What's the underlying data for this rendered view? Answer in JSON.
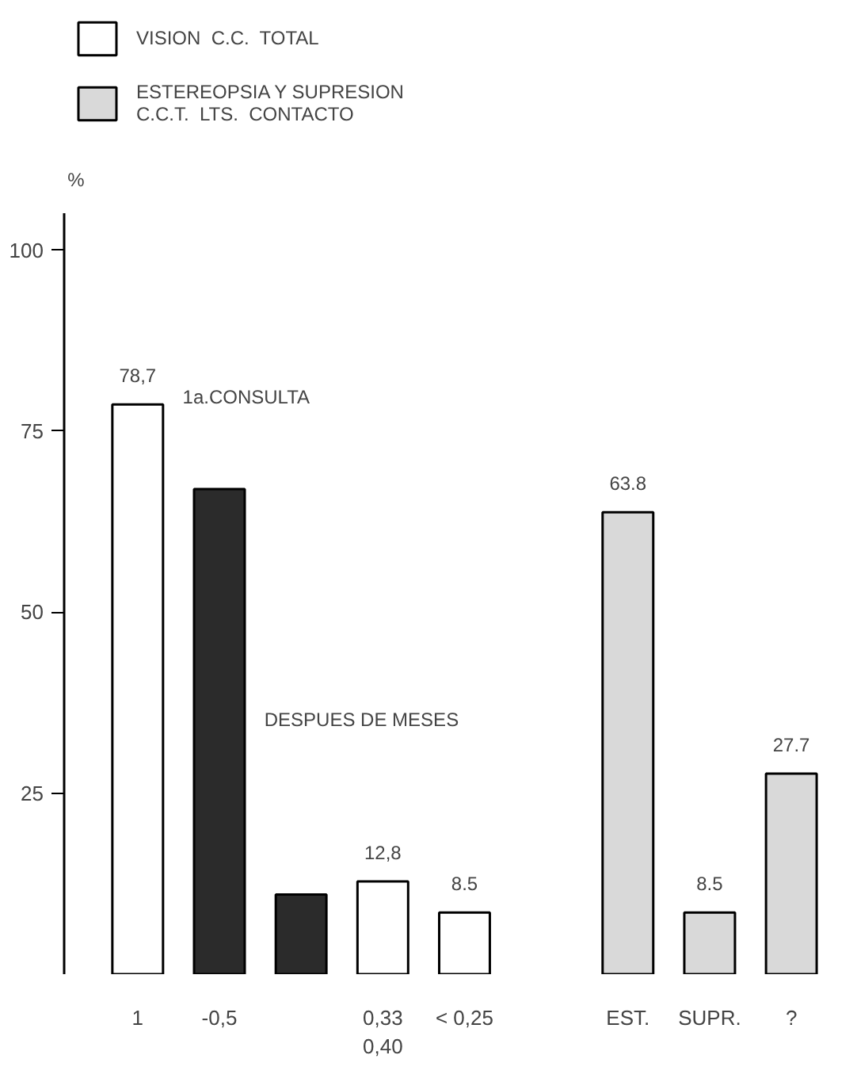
{
  "chart_data": {
    "type": "bar",
    "categories": [
      "1",
      "-0,5",
      null,
      "0,33\n0,40",
      "< 0,25",
      null,
      "EST.",
      "SUPR.",
      "?"
    ],
    "series": [
      {
        "name": "VISION  C.C.  TOTAL",
        "color": "#ffffff",
        "values": [
          78.7,
          null,
          null,
          12.8,
          8.5,
          null,
          null,
          null,
          null
        ],
        "value_labels": [
          "78,7",
          null,
          null,
          "12,8",
          "8.5",
          null,
          null,
          null,
          null
        ]
      },
      {
        "color": "#2b2b2b",
        "values": [
          null,
          67,
          11,
          null,
          null,
          null,
          null,
          null,
          null
        ]
      },
      {
        "name": "ESTEREOPSIA Y SUPRESION\nC.C.T.  LTS.  CONTACTO",
        "color": "#d9d9d9",
        "values": [
          null,
          null,
          null,
          null,
          null,
          null,
          63.8,
          8.5,
          27.7
        ],
        "value_labels": [
          null,
          null,
          null,
          null,
          null,
          null,
          "63.8",
          "8.5",
          "27.7"
        ]
      }
    ],
    "annotations": [
      "%",
      "1a.CONSULTA",
      "DESPUES DE MESES"
    ],
    "ylim": [
      0,
      105
    ],
    "yticks": [
      25,
      50,
      75,
      100
    ],
    "grid": false,
    "legend": "top left"
  }
}
